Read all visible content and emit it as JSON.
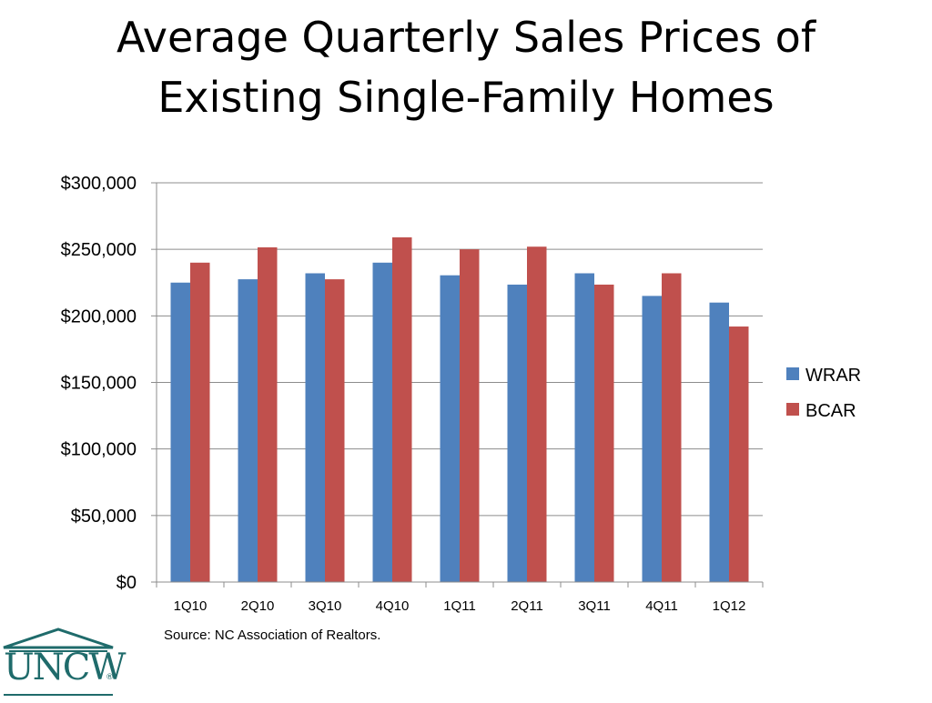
{
  "title": {
    "line1": "Average Quarterly Sales Prices of",
    "line2": "Existing Single-Family Homes"
  },
  "source": "Source:  NC Association of Realtors.",
  "logo": {
    "text": "UNCW",
    "reg": "®"
  },
  "chart_data": {
    "type": "bar",
    "categories": [
      "1Q10",
      "2Q10",
      "3Q10",
      "4Q10",
      "1Q11",
      "2Q11",
      "3Q11",
      "4Q11",
      "1Q12"
    ],
    "series": [
      {
        "name": "WRAR",
        "color": "#4f81bd",
        "values": [
          225000,
          227500,
          232000,
          240000,
          230500,
          223500,
          232000,
          215000,
          210000
        ]
      },
      {
        "name": "BCAR",
        "color": "#c0504d",
        "values": [
          240000,
          251500,
          227500,
          259000,
          250000,
          252000,
          223500,
          232000,
          192000
        ]
      }
    ],
    "ylim": [
      0,
      300000
    ],
    "yticks": [
      0,
      50000,
      100000,
      150000,
      200000,
      250000,
      300000
    ],
    "ytick_labels": [
      "$0",
      "$50,000",
      "$100,000",
      "$150,000",
      "$200,000",
      "$250,000",
      "$300,000"
    ],
    "grid": true,
    "legend_position": "right"
  }
}
